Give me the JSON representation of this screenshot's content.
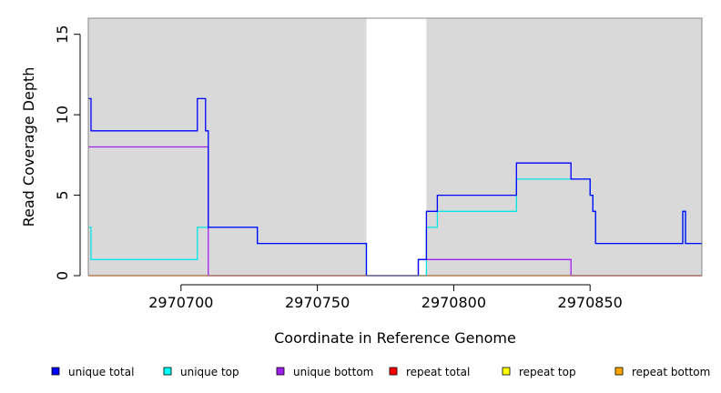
{
  "chart_data": {
    "type": "line",
    "title": "",
    "xlabel": "Coordinate in Reference Genome",
    "ylabel": "Read Coverage Depth",
    "xlim": [
      2970666,
      2970891
    ],
    "ylim": [
      0,
      16
    ],
    "xticks": [
      2970700,
      2970750,
      2970800,
      2970850
    ],
    "yticks": [
      0,
      5,
      10,
      15
    ],
    "shaded_regions": [
      {
        "from": 2970666,
        "to": 2970768,
        "color": "#d9d9d9"
      },
      {
        "from": 2970790,
        "to": 2970891,
        "color": "#d9d9d9"
      }
    ],
    "series": [
      {
        "name": "unique total",
        "color": "#0000ff",
        "x": [
          2970666,
          2970667,
          2970667,
          2970706,
          2970706,
          2970709,
          2970709,
          2970710,
          2970710,
          2970728,
          2970728,
          2970768,
          2970768,
          2970787,
          2970787,
          2970790,
          2970790,
          2970794,
          2970794,
          2970823,
          2970823,
          2970843,
          2970843,
          2970850,
          2970850,
          2970851,
          2970851,
          2970852,
          2970852,
          2970884,
          2970884,
          2970885,
          2970885,
          2970891
        ],
        "y": [
          11,
          11,
          9,
          9,
          11,
          11,
          9,
          9,
          3,
          3,
          2,
          2,
          0,
          0,
          1,
          1,
          4,
          4,
          5,
          5,
          7,
          7,
          6,
          6,
          5,
          5,
          4,
          4,
          2,
          2,
          4,
          4,
          2,
          2
        ]
      },
      {
        "name": "unique top",
        "color": "#00e5e5",
        "x": [
          2970666,
          2970667,
          2970667,
          2970706,
          2970706,
          2970710,
          2970710,
          2970728,
          2970728,
          2970768,
          2970768,
          2970790,
          2970790,
          2970794,
          2970794,
          2970823,
          2970823,
          2970843,
          2970843,
          2970850,
          2970850,
          2970851,
          2970851,
          2970852,
          2970852,
          2970884,
          2970884,
          2970885,
          2970885,
          2970891
        ],
        "y": [
          3,
          3,
          1,
          1,
          3,
          3,
          3,
          3,
          2,
          2,
          0,
          0,
          3,
          3,
          4,
          4,
          6,
          6,
          6,
          6,
          5,
          5,
          4,
          4,
          2,
          2,
          4,
          4,
          2,
          2
        ]
      },
      {
        "name": "unique bottom",
        "color": "#a020f0",
        "x": [
          2970666,
          2970710,
          2970710,
          2970787,
          2970787,
          2970843,
          2970843,
          2970891
        ],
        "y": [
          8,
          8,
          0,
          0,
          1,
          1,
          0,
          0
        ]
      },
      {
        "name": "repeat total",
        "color": "#ff0000",
        "x": [
          2970666,
          2970891
        ],
        "y": [
          0,
          0
        ]
      },
      {
        "name": "repeat top",
        "color": "#ffff00",
        "x": [
          2970666,
          2970891
        ],
        "y": [
          0,
          0
        ]
      },
      {
        "name": "repeat bottom",
        "color": "#ffa500",
        "x": [
          2970666,
          2970891
        ],
        "y": [
          0,
          0
        ]
      }
    ],
    "legend": {
      "position": "bottom",
      "items": [
        {
          "label": "unique total",
          "color": "#0000ff"
        },
        {
          "label": "unique top",
          "color": "#00ffff"
        },
        {
          "label": "unique bottom",
          "color": "#a020f0"
        },
        {
          "label": "repeat total",
          "color": "#ff0000"
        },
        {
          "label": "repeat top",
          "color": "#ffff00"
        },
        {
          "label": "repeat bottom",
          "color": "#ffa500"
        }
      ]
    },
    "grid": false
  }
}
